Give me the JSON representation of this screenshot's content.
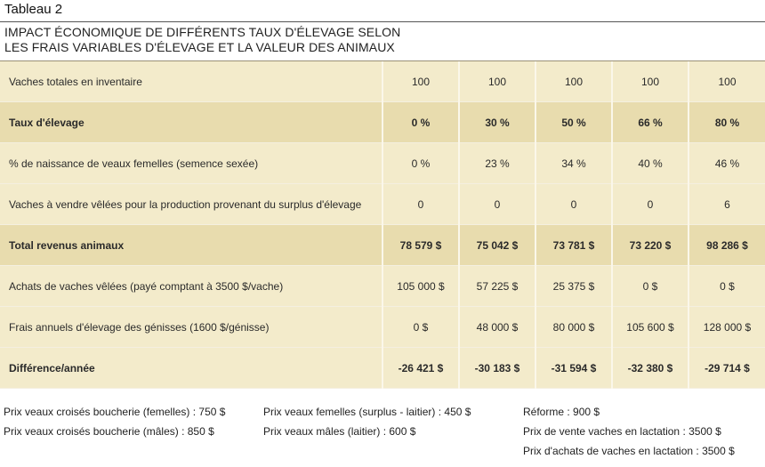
{
  "header": {
    "table_label": "Tableau 2",
    "title_line1": "IMPACT ÉCONOMIQUE DE DIFFÉRENTS TAUX D'ÉLEVAGE SELON",
    "title_line2": "LES FRAIS VARIABLES D'ÉLEVAGE ET LA VALEUR DES ANIMAUX"
  },
  "table": {
    "rows": [
      {
        "label": "Vaches totales en inventaire",
        "values": [
          "100",
          "100",
          "100",
          "100",
          "100"
        ]
      },
      {
        "label": "Taux d'élevage",
        "values": [
          "0 %",
          "30 %",
          "50 %",
          "66 %",
          "80 %"
        ]
      },
      {
        "label": "% de naissance de veaux femelles (semence sexée)",
        "values": [
          "0 %",
          "23 %",
          "34 %",
          "40 %",
          "46 %"
        ]
      },
      {
        "label": "Vaches à vendre vêlées pour la production provenant du surplus d'élevage",
        "values": [
          "0",
          "0",
          "0",
          "0",
          "6"
        ]
      },
      {
        "label": "Total revenus animaux",
        "values": [
          "78 579 $",
          "75 042 $",
          "73 781 $",
          "73 220 $",
          "98 286 $"
        ]
      },
      {
        "label": "Achats de vaches vêlées (payé comptant à 3500 $/vache)",
        "values": [
          "105 000 $",
          "57 225 $",
          "25 375 $",
          "0 $",
          "0 $"
        ]
      },
      {
        "label": "Frais annuels d'élevage des génisses (1600 $/génisse)",
        "values": [
          "0 $",
          "48 000 $",
          "80 000 $",
          "105 600 $",
          "128 000 $"
        ]
      },
      {
        "label": "Différence/année",
        "values": [
          "-26 421 $",
          "-30 183 $",
          "-31 594 $",
          "-32 380 $",
          "-29 714 $"
        ]
      }
    ]
  },
  "notes": {
    "col1": [
      "Prix veaux croisés boucherie (femelles) : 750 $",
      "Prix veaux croisés boucherie (mâles) : 850 $"
    ],
    "col2": [
      "Prix veaux femelles (surplus - laitier) : 450 $",
      "Prix veaux mâles (laitier) : 600 $"
    ],
    "col3": [
      "Réforme : 900 $",
      "Prix de vente vaches en lactation : 3500 $",
      "Prix d'achats de vaches en lactation : 3500 $"
    ]
  }
}
